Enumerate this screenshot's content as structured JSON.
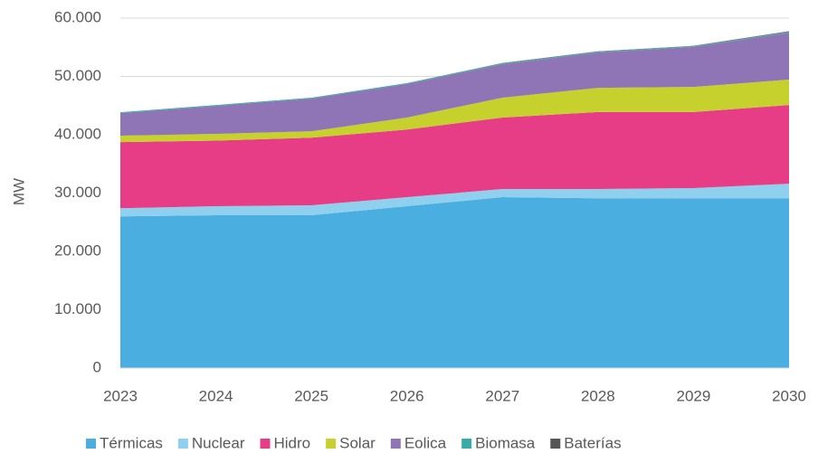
{
  "chart_data": {
    "type": "stacked-area",
    "y_label": "MW",
    "categories": [
      "2023",
      "2024",
      "2025",
      "2026",
      "2027",
      "2028",
      "2029",
      "2030"
    ],
    "series": [
      {
        "name": "Térmicas",
        "color": "#4aaee0",
        "values": [
          26000,
          26200,
          26200,
          27750,
          29300,
          29100,
          29100,
          29100
        ]
      },
      {
        "name": "Nuclear",
        "color": "#8fd0ef",
        "values": [
          1400,
          1550,
          1700,
          1550,
          1400,
          1600,
          1750,
          2500
        ]
      },
      {
        "name": "Hidro",
        "color": "#e63d86",
        "values": [
          11350,
          11250,
          11600,
          11600,
          12250,
          13200,
          13050,
          13500
        ]
      },
      {
        "name": "Solar",
        "color": "#c6d12e",
        "values": [
          1100,
          1150,
          1100,
          2050,
          3400,
          4150,
          4300,
          4350
        ]
      },
      {
        "name": "Eolica",
        "color": "#8f74b6",
        "values": [
          3850,
          4800,
          5600,
          5750,
          5750,
          6050,
          6850,
          8050
        ]
      },
      {
        "name": "Biomasa",
        "color": "#3aaca8",
        "values": [
          150,
          150,
          150,
          150,
          150,
          150,
          150,
          150
        ]
      },
      {
        "name": "Baterías",
        "color": "#555555",
        "values": [
          0,
          0,
          0,
          0,
          50,
          50,
          50,
          100
        ]
      }
    ],
    "ylim": [
      0,
      60000
    ],
    "yticks": [
      0,
      {
        "value": 10000,
        "label": "10.000"
      },
      {
        "value": 20000,
        "label": "20.000"
      },
      {
        "value": 30000,
        "label": "30.000"
      },
      {
        "value": 40000,
        "label": "40.000"
      },
      {
        "value": 50000,
        "label": "50.000"
      },
      {
        "value": 60000,
        "label": "60.000"
      }
    ],
    "grid": true,
    "legend": "bottom"
  }
}
